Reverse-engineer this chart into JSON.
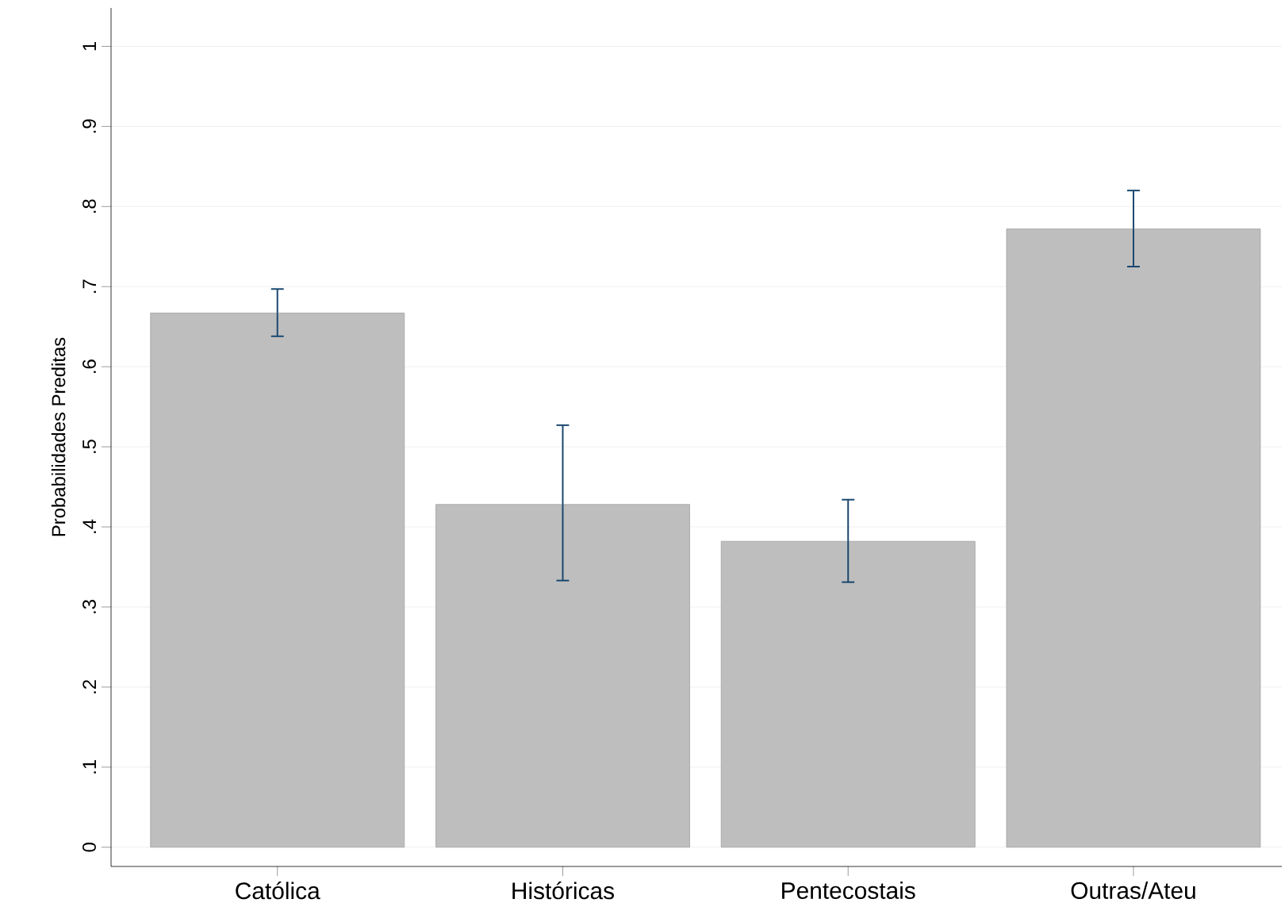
{
  "chart_data": {
    "type": "bar",
    "ylabel": "Probabilidades Preditas",
    "categories": [
      "Católica",
      "Históricas",
      "Pentecostais",
      "Outras/Ateu"
    ],
    "values": [
      0.667,
      0.428,
      0.382,
      0.772
    ],
    "errors": [
      [
        0.638,
        0.697
      ],
      [
        0.333,
        0.527
      ],
      [
        0.331,
        0.434
      ],
      [
        0.725,
        0.82
      ]
    ],
    "color": "#bebebe",
    "ylim": [
      -0.024,
      1.048
    ],
    "yticks": [
      0,
      {
        "value": 0.1,
        "label": ".1"
      },
      {
        "value": 0.2,
        "label": ".2"
      },
      {
        "value": 0.3,
        "label": ".3"
      },
      {
        "value": 0.4,
        "label": ".4"
      },
      {
        "value": 0.5,
        "label": ".5"
      },
      {
        "value": 0.6,
        "label": ".6"
      },
      {
        "value": 0.7,
        "label": ".7"
      },
      {
        "value": 0.8,
        "label": ".8"
      },
      {
        "value": 0.9,
        "label": ".9"
      },
      1
    ],
    "grid": "y"
  }
}
